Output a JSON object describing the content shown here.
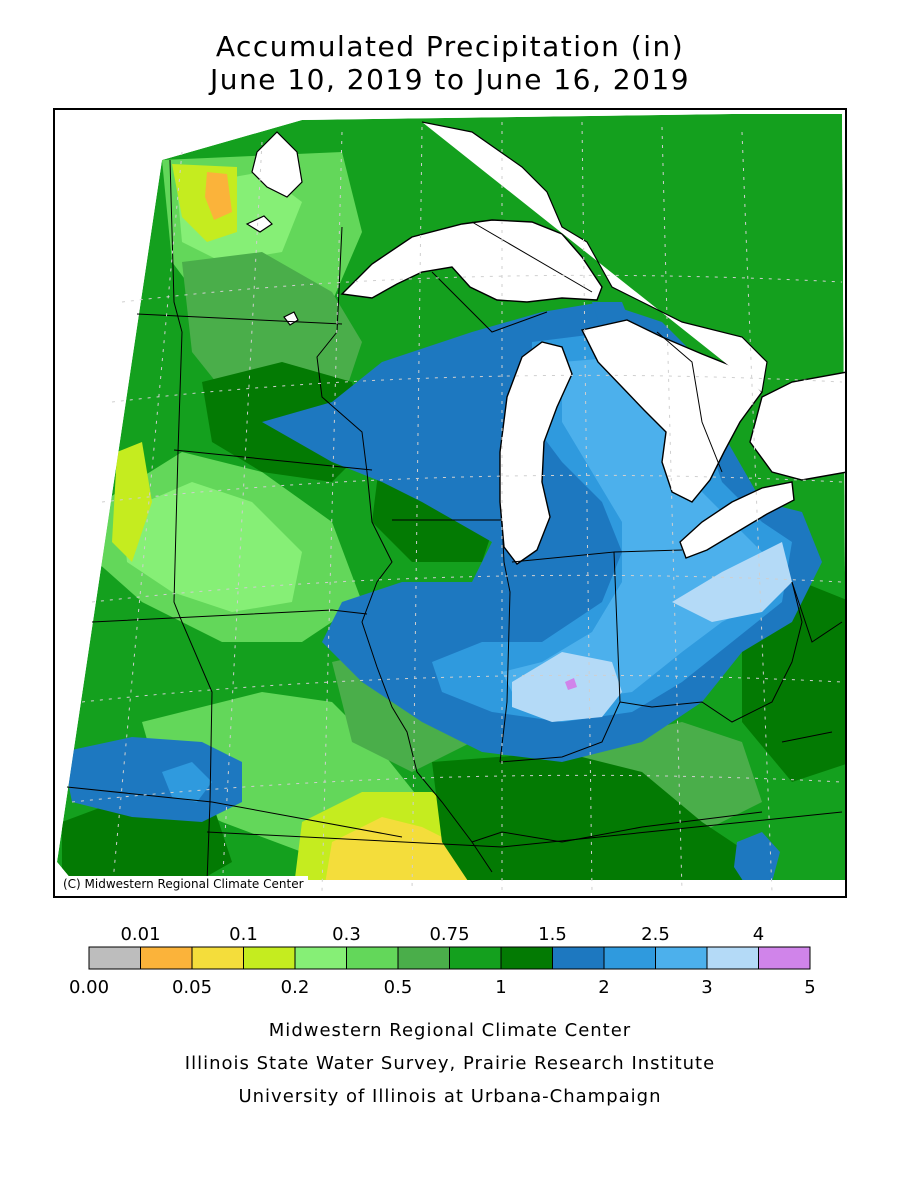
{
  "title": {
    "line1": "Accumulated Precipitation (in)",
    "line2": "June 10, 2019 to June 16, 2019"
  },
  "map": {
    "copyright": "(C) Midwestern Regional Climate Center",
    "water_color": "#ffffff",
    "outline_color": "#000000"
  },
  "legend": {
    "colors": [
      "#bdbdbd",
      "#fbb33a",
      "#f4dd3b",
      "#c5ec1f",
      "#86ef76",
      "#63d75a",
      "#4aae4a",
      "#14a01e",
      "#037a03",
      "#1d78c0",
      "#2f9ade",
      "#4cb0ec",
      "#b4daf7",
      "#d084ea"
    ],
    "top_labels": [
      "0.01",
      "0.1",
      "0.3",
      "0.75",
      "1.5",
      "2.5",
      "4"
    ],
    "bottom_labels": [
      "0.00",
      "0.05",
      "0.2",
      "0.5",
      "1",
      "2",
      "3",
      "5"
    ]
  },
  "credits": {
    "line1": "Midwestern Regional Climate Center",
    "line2": "Illinois State Water Survey, Prairie Research Institute",
    "line3": "University of Illinois at Urbana-Champaign"
  }
}
